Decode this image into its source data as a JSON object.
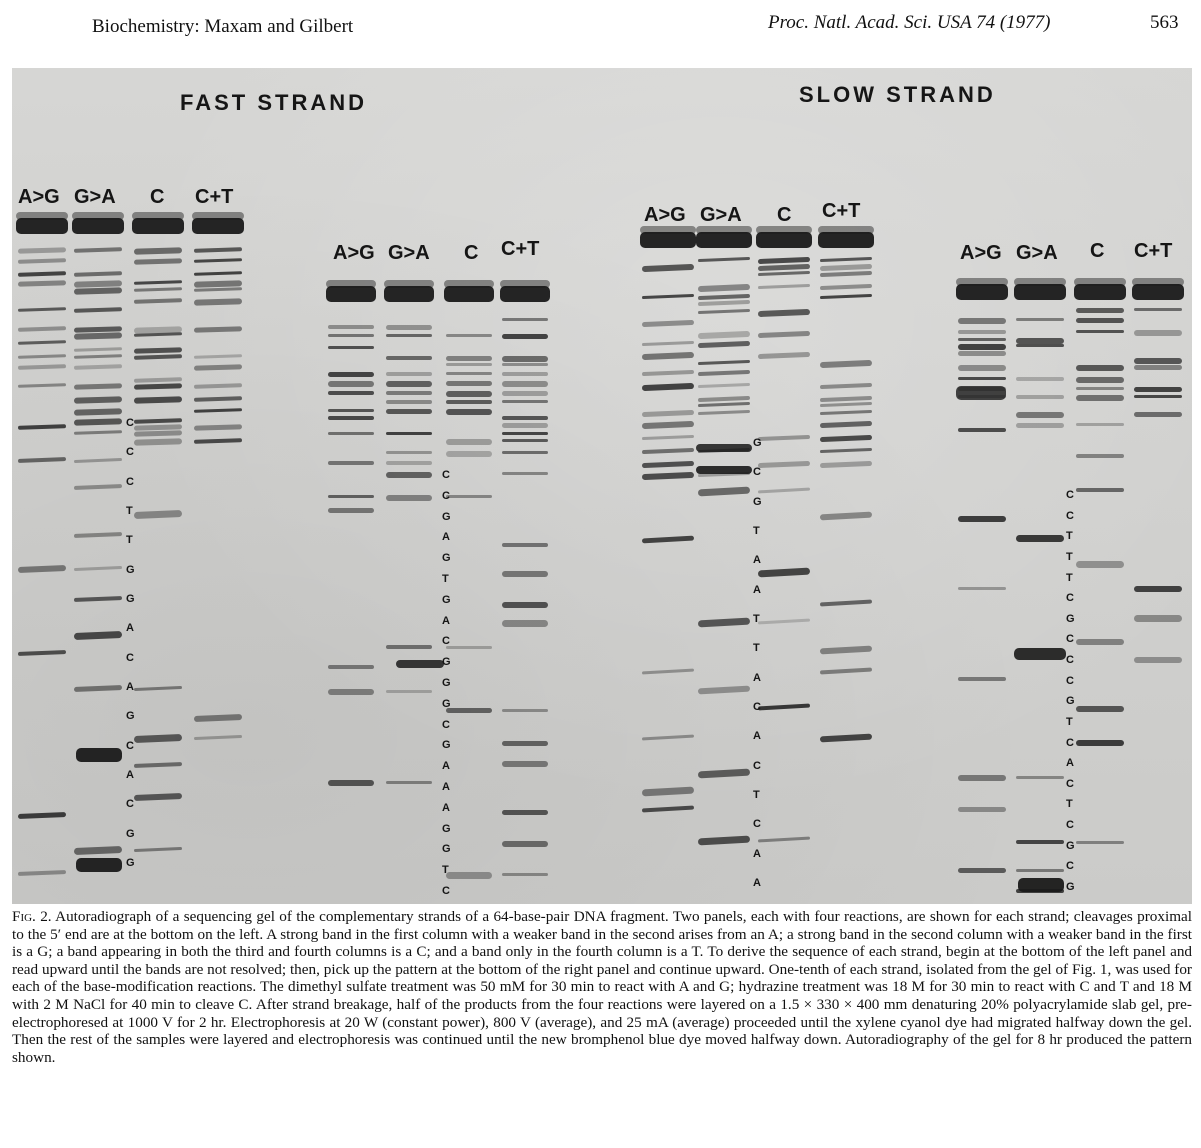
{
  "header": {
    "left": "Biochemistry: Maxam and Gilbert",
    "right": "Proc. Natl. Acad. Sci. USA 74 (1977)",
    "page": "563"
  },
  "figure": {
    "strand_titles": [
      "FAST STRAND",
      "SLOW STRAND"
    ],
    "lane_labels": [
      "A>G",
      "G>A",
      "C",
      "C+T"
    ],
    "fast_panel1_sequence": [
      "C",
      "C",
      "C",
      "T",
      "T",
      "G",
      "G",
      "A",
      "C",
      "A",
      "G",
      "C",
      "A",
      "C",
      "G",
      "G"
    ],
    "fast_panel2_sequence": [
      "C",
      "C",
      "G",
      "A",
      "G",
      "T",
      "G",
      "A",
      "C",
      "G",
      "G",
      "G",
      "C",
      "G",
      "A",
      "A",
      "A",
      "G",
      "G",
      "T",
      "C"
    ],
    "slow_panel1_sequence": [
      "G",
      "C",
      "G",
      "T",
      "A",
      "A",
      "T",
      "T",
      "A",
      "C",
      "A",
      "C",
      "T",
      "C",
      "A",
      "A"
    ],
    "slow_panel2_sequence": [
      "C",
      "C",
      "T",
      "T",
      "T",
      "C",
      "G",
      "C",
      "C",
      "C",
      "G",
      "T",
      "C",
      "A",
      "C",
      "T",
      "C",
      "G",
      "C",
      "G"
    ],
    "colors": {
      "band": "#1a1a1a",
      "gel_background": "#d3d3d1"
    }
  },
  "caption": {
    "lead": "Fig. 2.",
    "text": "Autoradiograph of a sequencing gel of the complementary strands of a 64-base-pair DNA fragment. Two panels, each with four reactions, are shown for each strand; cleavages proximal to the 5′ end are at the bottom on the left. A strong band in the first column with a weaker band in the second arises from an A; a strong band in the second column with a weaker band in the first is a G; a band appearing in both the third and fourth columns is a C; and a band only in the fourth column is a T. To derive the sequence of each strand, begin at the bottom of the left panel and read upward until the bands are not resolved; then, pick up the pattern at the bottom of the right panel and continue upward. One-tenth of each strand, isolated from the gel of Fig. 1, was used for each of the base-modification reactions. The dimethyl sulfate treatment was 50 mM for 30 min to react with A and G; hydrazine treatment was 18 M for 30 min to react with C and T and 18 M with 2 M NaCl for 40 min to cleave C. After strand breakage, half of the products from the four reactions were layered on a 1.5 × 330 × 400 mm denaturing 20% polyacrylamide slab gel, pre-electrophoresed at 1000 V for 2 hr. Electrophoresis at 20 W (constant power), 800 V (average), and 25 mA (average) proceeded until the xylene cyanol dye had migrated halfway down the gel. Then the rest of the samples were layered and electrophoresis was continued until the new bromphenol blue dye moved halfway down. Autoradiography of the gel for 8 hr produced the pattern shown."
  }
}
